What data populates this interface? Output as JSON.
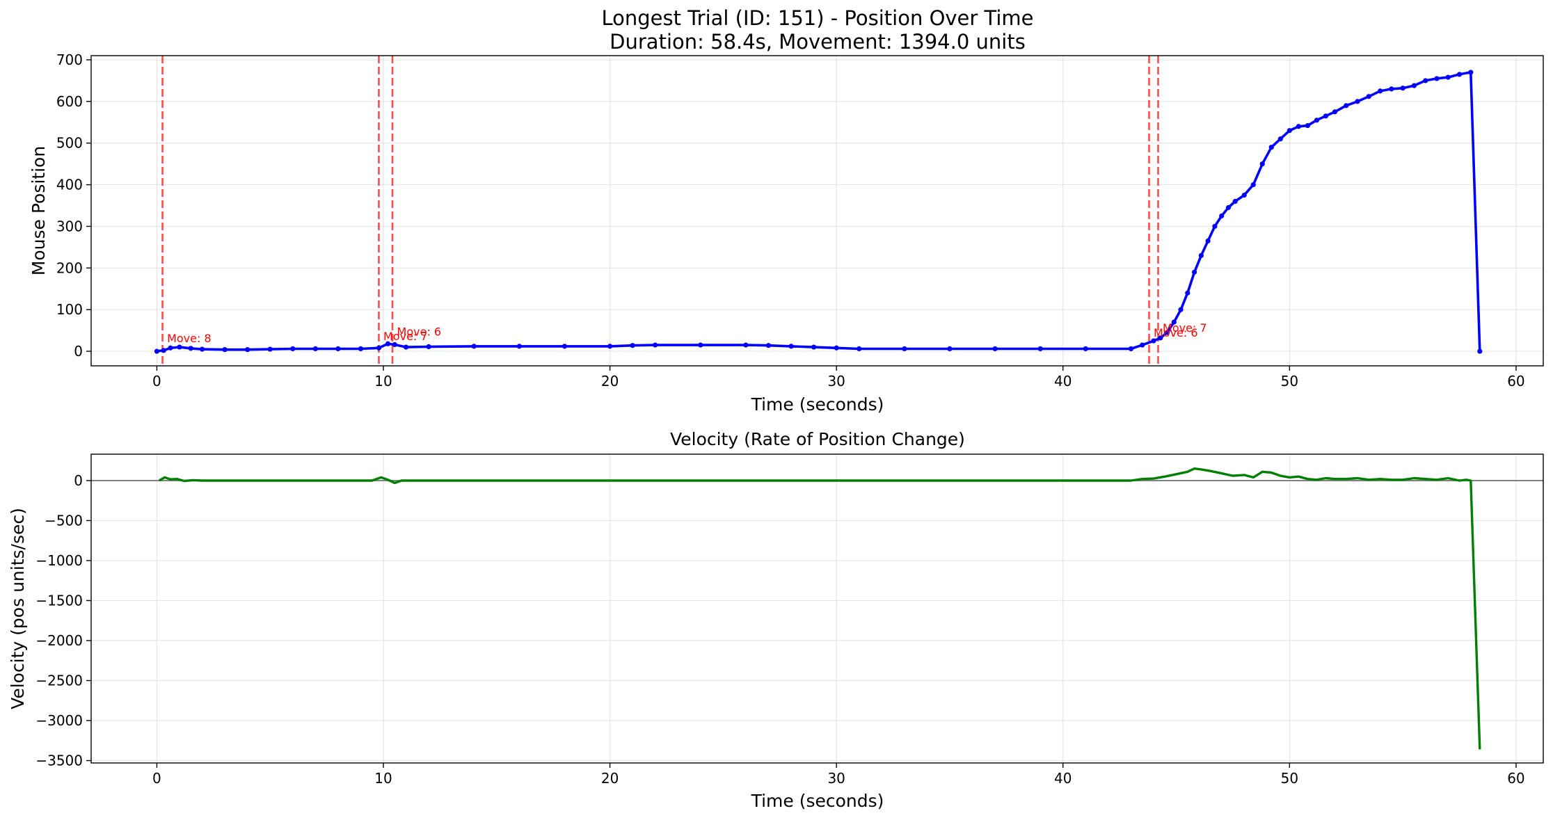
{
  "chart_data": [
    {
      "type": "line",
      "title": "Longest Trial (ID: 151) - Position Over Time",
      "subtitle": "Duration: 58.4s, Movement: 1394.0 units",
      "xlabel": "Time (seconds)",
      "ylabel": "Mouse Position",
      "xlim": [
        -2.9,
        61.2
      ],
      "ylim": [
        -35,
        710
      ],
      "xticks": [
        0,
        10,
        20,
        30,
        40,
        50,
        60
      ],
      "xtick_labels": [
        "0",
        "10",
        "20",
        "30",
        "40",
        "50",
        "60"
      ],
      "yticks": [
        0,
        100,
        200,
        300,
        400,
        500,
        600,
        700
      ],
      "ytick_labels": [
        "0",
        "100",
        "200",
        "300",
        "400",
        "500",
        "600",
        "700"
      ],
      "grid": true,
      "series_color": "#0000ff",
      "marker": "circle",
      "series": [
        {
          "x": [
            0,
            0.3,
            0.6,
            1.0,
            1.5,
            2.0,
            3.0,
            4.0,
            5.0,
            6.0,
            7.0,
            8.0,
            9.0,
            9.8,
            10.2,
            10.5,
            11.0,
            12.0,
            14.0,
            16.0,
            18.0,
            20.0,
            21.0,
            22.0,
            24.0,
            26.0,
            27.0,
            28.0,
            29.0,
            30.0,
            31.0,
            33.0,
            35.0,
            37.0,
            39.0,
            41.0,
            43.0,
            43.5,
            44.0,
            44.3,
            44.6,
            44.9,
            45.2,
            45.5,
            45.8,
            46.1,
            46.4,
            46.7,
            47.0,
            47.3,
            47.6,
            48.0,
            48.4,
            48.8,
            49.2,
            49.6,
            50.0,
            50.4,
            50.8,
            51.2,
            51.6,
            52.0,
            52.5,
            53.0,
            53.5,
            54.0,
            54.5,
            55.0,
            55.5,
            56.0,
            56.5,
            57.0,
            57.5,
            58.0,
            58.4
          ],
          "y": [
            0,
            2,
            8,
            10,
            7,
            5,
            4,
            4,
            5,
            6,
            6,
            6,
            6,
            8,
            18,
            16,
            10,
            11,
            12,
            12,
            12,
            12,
            14,
            15,
            15,
            15,
            14,
            12,
            10,
            8,
            6,
            6,
            6,
            6,
            6,
            6,
            6,
            15,
            25,
            32,
            45,
            70,
            100,
            140,
            190,
            230,
            265,
            300,
            325,
            345,
            360,
            375,
            400,
            450,
            490,
            510,
            530,
            540,
            542,
            555,
            565,
            575,
            590,
            600,
            612,
            625,
            630,
            632,
            638,
            650,
            655,
            658,
            665,
            670,
            0
          ]
        }
      ],
      "vlines": [
        0.25,
        9.8,
        10.4,
        43.8,
        44.2
      ],
      "vline_color": "#ff0000",
      "annotations": [
        {
          "text": "Move: 8",
          "x": 0.45,
          "y": 22
        },
        {
          "text": "Move: 7",
          "x": 10.0,
          "y": 27
        },
        {
          "text": "Move: 6",
          "x": 10.6,
          "y": 38
        },
        {
          "text": "Move: 6",
          "x": 44.0,
          "y": 35
        },
        {
          "text": "Move: 7",
          "x": 44.4,
          "y": 47
        }
      ]
    },
    {
      "type": "line",
      "title": "Velocity (Rate of Position Change)",
      "xlabel": "Time (seconds)",
      "ylabel": "Velocity (pos units/sec)",
      "xlim": [
        -2.9,
        61.2
      ],
      "ylim": [
        -3530,
        330
      ],
      "xticks": [
        0,
        10,
        20,
        30,
        40,
        50,
        60
      ],
      "xtick_labels": [
        "0",
        "10",
        "20",
        "30",
        "40",
        "50",
        "60"
      ],
      "yticks": [
        0,
        -500,
        -1000,
        -1500,
        -2000,
        -2500,
        -3000,
        -3500
      ],
      "ytick_labels": [
        "0",
        "−500",
        "−1000",
        "−1500",
        "−2000",
        "−2500",
        "−3000",
        "−3500"
      ],
      "grid": true,
      "series_color": "#008000",
      "hline": 0,
      "series": [
        {
          "x": [
            0.1,
            0.35,
            0.6,
            0.9,
            1.2,
            1.6,
            2.0,
            3.0,
            5.0,
            8.0,
            9.5,
            9.9,
            10.2,
            10.5,
            10.8,
            11.5,
            13.0,
            20.0,
            27.0,
            30.0,
            35.0,
            40.0,
            43.0,
            43.5,
            44.0,
            44.5,
            45.0,
            45.5,
            45.8,
            46.1,
            46.5,
            47.0,
            47.5,
            48.0,
            48.4,
            48.8,
            49.2,
            49.6,
            50.0,
            50.4,
            50.8,
            51.2,
            51.6,
            52.0,
            52.5,
            53.0,
            53.5,
            54.0,
            54.5,
            55.0,
            55.5,
            56.0,
            56.5,
            57.0,
            57.5,
            57.8,
            58.0,
            58.4
          ],
          "y": [
            0,
            40,
            15,
            20,
            -5,
            5,
            0,
            0,
            0,
            0,
            0,
            40,
            10,
            -30,
            0,
            0,
            0,
            0,
            0,
            0,
            0,
            0,
            0,
            20,
            25,
            50,
            80,
            110,
            150,
            140,
            120,
            90,
            60,
            70,
            40,
            110,
            100,
            60,
            40,
            50,
            20,
            10,
            30,
            20,
            20,
            30,
            10,
            20,
            10,
            10,
            30,
            20,
            10,
            30,
            0,
            10,
            0,
            -3360
          ]
        }
      ]
    }
  ]
}
